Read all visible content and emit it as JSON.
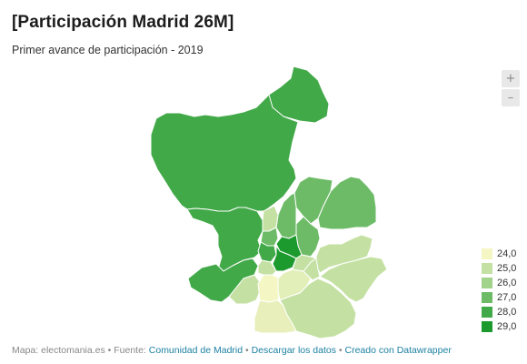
{
  "header": {
    "title": "[Participación Madrid 26M]",
    "subtitle": "Primer avance de participación - 2019"
  },
  "zoom": {
    "in_label": "+",
    "out_label": "–",
    "in_icon": "plus-icon",
    "out_icon": "minus-icon"
  },
  "legend": {
    "items": [
      {
        "label": "24,0",
        "color": "#f4f7c4"
      },
      {
        "label": "25,0",
        "color": "#c4e1a3"
      },
      {
        "label": "26,0",
        "color": "#a1d38b"
      },
      {
        "label": "27,0",
        "color": "#6dbb67"
      },
      {
        "label": "28,0",
        "color": "#42a949"
      },
      {
        "label": "29,0",
        "color": "#1d9a2e"
      }
    ]
  },
  "map": {
    "region": "Madrid",
    "districts": [
      {
        "id": "fuencarral-el-pardo",
        "color": "#42a949"
      },
      {
        "id": "moncloa-aravaca",
        "color": "#42a949"
      },
      {
        "id": "latina",
        "color": "#42a949"
      },
      {
        "id": "carabanchel",
        "color": "#c4e1a3"
      },
      {
        "id": "usera",
        "color": "#f4f7c4"
      },
      {
        "id": "villaverde",
        "color": "#e8efbb"
      },
      {
        "id": "puente-de-vallecas",
        "color": "#e3efb8"
      },
      {
        "id": "villa-de-vallecas",
        "color": "#c4e1a3"
      },
      {
        "id": "vicalvaro",
        "color": "#c4e1a3"
      },
      {
        "id": "san-blas",
        "color": "#c4e1a3"
      },
      {
        "id": "barajas",
        "color": "#6dbb67"
      },
      {
        "id": "hortaleza",
        "color": "#6dbb67"
      },
      {
        "id": "ciudad-lineal",
        "color": "#6dbb67"
      },
      {
        "id": "chamartin",
        "color": "#6dbb67"
      },
      {
        "id": "tetuan",
        "color": "#c4e1a3"
      },
      {
        "id": "chamberi",
        "color": "#6dbb67"
      },
      {
        "id": "centro",
        "color": "#42a949"
      },
      {
        "id": "arganzuela",
        "color": "#c4e1a3"
      },
      {
        "id": "retiro",
        "color": "#1d9a2e"
      },
      {
        "id": "salamanca",
        "color": "#1d9a2e"
      },
      {
        "id": "moratalaz",
        "color": "#c4e1a3"
      }
    ]
  },
  "footer": {
    "prefix": "Mapa: electomania.es • Fuente: ",
    "source_link": "Comunidad de Madrid",
    "sep1": " • ",
    "download_link": "Descargar los datos",
    "sep2": " • ",
    "created_link": "Creado con Datawrapper"
  }
}
